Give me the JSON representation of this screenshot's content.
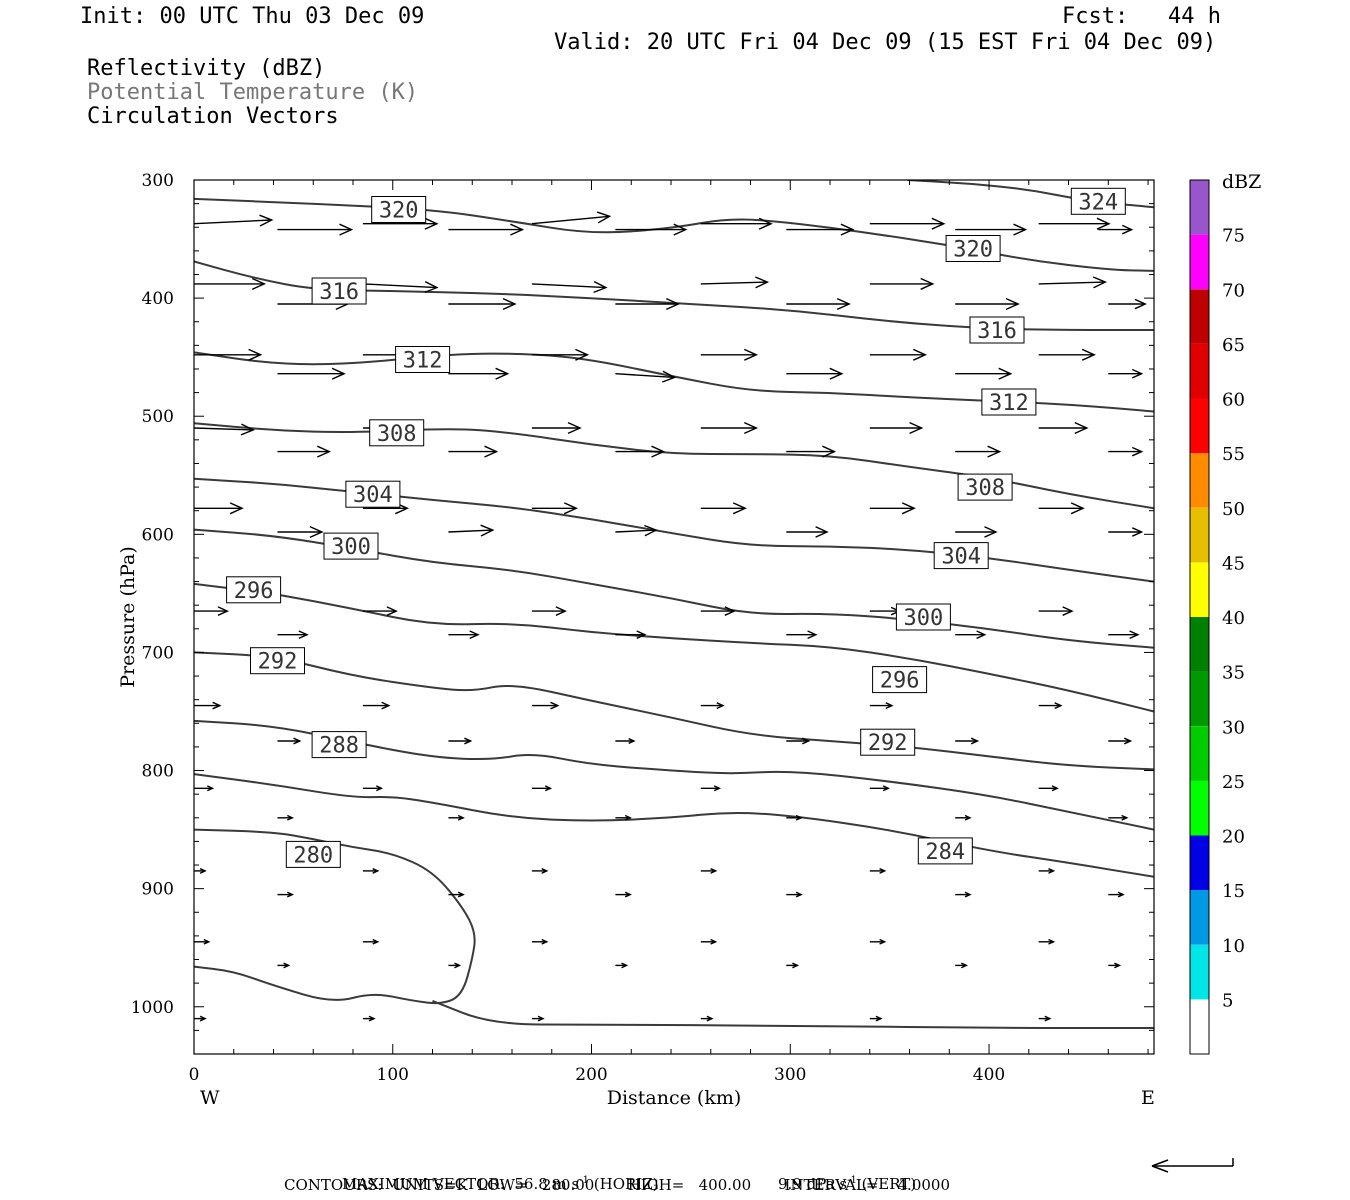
{
  "header": {
    "init": "Init: 00 UTC Thu 03 Dec 09",
    "fcst": "Fcst:   44 h",
    "valid": "Valid: 20 UTC Fri 04 Dec 09 (15 EST Fri 04 Dec 09)",
    "field1": "Reflectivity (dBZ)",
    "field2": "Potential Temperature (K)",
    "field3": "Circulation Vectors"
  },
  "footer": {
    "maxvec_label": "MAXIMUM VECTOR:",
    "maxvec_horiz": "56.8 m s",
    "horiz_tag": "(HORIZ)",
    "maxvec_vert": "9.9 dPa s",
    "vert_tag": "(VERT)",
    "exponent": "-1",
    "contours": "CONTOURS:  UNITS=K  LOW=   280.00       HIGH=   400.00       INTERVAL=    4.0000"
  },
  "colors": {
    "contour": "#3a3a3a",
    "vector": "#000000",
    "frame": "#000000"
  },
  "chart_data": {
    "type": "line",
    "xlabel": "Distance (km)",
    "ylabel": "Pressure (hPa)",
    "xlim": [
      0,
      483
    ],
    "ylim": [
      1040,
      300
    ],
    "x_ticks": [
      0,
      100,
      200,
      300,
      400
    ],
    "y_ticks": [
      300,
      400,
      500,
      600,
      700,
      800,
      900,
      1000
    ],
    "x_end_labels": {
      "left": "W",
      "right": "E"
    },
    "colorbar": {
      "unit": "dBZ",
      "levels": [
        "5",
        "10",
        "15",
        "20",
        "25",
        "30",
        "35",
        "40",
        "45",
        "50",
        "55",
        "60",
        "65",
        "70",
        "75"
      ],
      "colors": [
        "#ffffff",
        "#00e5e5",
        "#0099e5",
        "#0000e5",
        "#00ff00",
        "#00cc00",
        "#009900",
        "#008000",
        "#ffff00",
        "#e5bf00",
        "#ff8c00",
        "#ff0000",
        "#e00000",
        "#bf0000",
        "#ff00ff",
        "#9955cc"
      ]
    },
    "series": [
      {
        "name": "324",
        "x": [
          359,
          390,
          420,
          450,
          483
        ],
        "y": [
          300,
          303,
          308,
          318,
          323
        ]
      },
      {
        "name": "320",
        "x": [
          0,
          60,
          120,
          160,
          200,
          240,
          270,
          300,
          340,
          380,
          420,
          460,
          483
        ],
        "y": [
          316,
          320,
          325,
          335,
          346,
          341,
          332,
          336,
          345,
          355,
          368,
          376,
          377
        ]
      },
      {
        "name": "316",
        "x": [
          0,
          30,
          60,
          100,
          150,
          200,
          250,
          300,
          350,
          400,
          440,
          483
        ],
        "y": [
          369,
          383,
          393,
          394,
          396,
          400,
          405,
          410,
          420,
          426,
          427,
          427
        ]
      },
      {
        "name": "312",
        "x": [
          0,
          40,
          80,
          130,
          170,
          200,
          240,
          280,
          320,
          360,
          400,
          440,
          483
        ],
        "y": [
          446,
          456,
          456,
          447,
          447,
          452,
          466,
          479,
          480,
          484,
          487,
          490,
          496
        ]
      },
      {
        "name": "308",
        "x": [
          0,
          40,
          80,
          130,
          160,
          200,
          240,
          280,
          320,
          360,
          400,
          440,
          483
        ],
        "y": [
          506,
          512,
          514,
          510,
          514,
          524,
          532,
          532,
          533,
          543,
          552,
          566,
          578
        ]
      },
      {
        "name": "304",
        "x": [
          0,
          40,
          80,
          120,
          160,
          200,
          240,
          280,
          320,
          360,
          400,
          440,
          483
        ],
        "y": [
          553,
          557,
          564,
          571,
          577,
          587,
          599,
          610,
          610,
          613,
          620,
          630,
          640
        ]
      },
      {
        "name": "300",
        "x": [
          0,
          40,
          80,
          120,
          160,
          200,
          240,
          280,
          320,
          360,
          400,
          440,
          483
        ],
        "y": [
          596,
          601,
          612,
          624,
          630,
          642,
          654,
          668,
          667,
          672,
          680,
          690,
          696
        ]
      },
      {
        "name": "296",
        "x": [
          0,
          40,
          80,
          120,
          160,
          200,
          240,
          280,
          320,
          360,
          400,
          440,
          483
        ],
        "y": [
          642,
          650,
          663,
          677,
          675,
          683,
          688,
          692,
          695,
          705,
          718,
          732,
          750
        ]
      },
      {
        "name": "292",
        "x": [
          0,
          40,
          80,
          120,
          140,
          160,
          200,
          240,
          280,
          320,
          360,
          400,
          440,
          483
        ],
        "y": [
          700,
          703,
          720,
          730,
          733,
          726,
          741,
          755,
          770,
          775,
          780,
          788,
          796,
          799
        ]
      },
      {
        "name": "288",
        "x": [
          0,
          40,
          80,
          120,
          150,
          170,
          200,
          240,
          270,
          300,
          350,
          400,
          440,
          483
        ],
        "y": [
          758,
          762,
          776,
          789,
          791,
          785,
          795,
          800,
          803,
          800,
          809,
          821,
          835,
          850
        ]
      },
      {
        "name": "284",
        "x": [
          0,
          40,
          80,
          100,
          120,
          160,
          200,
          240,
          270,
          300,
          350,
          400,
          440,
          483
        ],
        "y": [
          803,
          812,
          823,
          822,
          827,
          840,
          843,
          840,
          835,
          838,
          850,
          868,
          878,
          890
        ]
      },
      {
        "name": "280",
        "x": [
          0,
          40,
          60,
          80,
          100,
          120,
          135,
          142,
          140,
          135,
          125,
          110,
          90,
          70,
          40,
          20,
          0
        ],
        "y": [
          850,
          852,
          858,
          865,
          870,
          885,
          915,
          938,
          960,
          990,
          998,
          995,
          988,
          997,
          982,
          970,
          966
        ]
      },
      {
        "name": "",
        "x": [
          120,
          150,
          200,
          300,
          400,
          483
        ],
        "y": [
          995,
          1015,
          1015,
          1016,
          1018,
          1018
        ]
      }
    ],
    "contour_labels": [
      {
        "text": "324",
        "x": 455,
        "y": 318
      },
      {
        "text": "320",
        "x": 103,
        "y": 325
      },
      {
        "text": "320",
        "x": 392,
        "y": 358
      },
      {
        "text": "316",
        "x": 73,
        "y": 394
      },
      {
        "text": "316",
        "x": 404,
        "y": 427
      },
      {
        "text": "312",
        "x": 115,
        "y": 452
      },
      {
        "text": "312",
        "x": 410,
        "y": 488
      },
      {
        "text": "308",
        "x": 102,
        "y": 514
      },
      {
        "text": "308",
        "x": 398,
        "y": 560
      },
      {
        "text": "304",
        "x": 90,
        "y": 566
      },
      {
        "text": "304",
        "x": 386,
        "y": 618
      },
      {
        "text": "300",
        "x": 79,
        "y": 610
      },
      {
        "text": "300",
        "x": 367,
        "y": 670
      },
      {
        "text": "296",
        "x": 30,
        "y": 647
      },
      {
        "text": "296",
        "x": 355,
        "y": 723
      },
      {
        "text": "292",
        "x": 42,
        "y": 707
      },
      {
        "text": "292",
        "x": 349,
        "y": 776
      },
      {
        "text": "288",
        "x": 73,
        "y": 778
      },
      {
        "text": "284",
        "x": 378,
        "y": 868
      },
      {
        "text": "280",
        "x": 60,
        "y": 871
      }
    ],
    "vectors": [
      {
        "p": 337,
        "x": [
          0,
          85,
          170,
          255,
          340,
          425
        ],
        "u": [
          42,
          40,
          42,
          38,
          40,
          38
        ],
        "v": [
          2,
          0,
          4,
          0,
          0,
          0
        ]
      },
      {
        "p": 342,
        "x": [
          42,
          128,
          212,
          298,
          383,
          455
        ],
        "u": [
          40,
          40,
          38,
          36,
          38,
          18
        ],
        "v": [
          0,
          0,
          0,
          0,
          0,
          0
        ]
      },
      {
        "p": 388,
        "x": [
          0,
          85,
          170,
          255,
          340,
          425
        ],
        "u": [
          38,
          40,
          40,
          36,
          34,
          36
        ],
        "v": [
          0,
          -2,
          -2,
          1,
          0,
          1
        ]
      },
      {
        "p": 405,
        "x": [
          42,
          128,
          212,
          298,
          383,
          460
        ],
        "u": [
          38,
          36,
          34,
          34,
          34,
          20
        ],
        "v": [
          0,
          0,
          0,
          0,
          0,
          0
        ]
      },
      {
        "p": 448,
        "x": [
          0,
          85,
          170,
          255,
          340,
          425
        ],
        "u": [
          36,
          36,
          30,
          30,
          30,
          30
        ],
        "v": [
          0,
          0,
          0,
          0,
          0,
          0
        ]
      },
      {
        "p": 464,
        "x": [
          42,
          128,
          212,
          298,
          383,
          460
        ],
        "u": [
          36,
          32,
          32,
          30,
          30,
          18
        ],
        "v": [
          0,
          0,
          -2,
          0,
          0,
          0
        ]
      },
      {
        "p": 510,
        "x": [
          0,
          85,
          170,
          255,
          340,
          425
        ],
        "u": [
          32,
          32,
          26,
          30,
          28,
          26
        ],
        "v": [
          -1,
          0,
          0,
          0,
          0,
          0
        ]
      },
      {
        "p": 530,
        "x": [
          42,
          128,
          212,
          298,
          383,
          460
        ],
        "u": [
          28,
          26,
          26,
          26,
          24,
          18
        ],
        "v": [
          0,
          0,
          0,
          0,
          0,
          0
        ]
      },
      {
        "p": 578,
        "x": [
          0,
          85,
          170,
          255,
          340,
          425
        ],
        "u": [
          26,
          24,
          24,
          24,
          24,
          24
        ],
        "v": [
          0,
          0,
          0,
          0,
          0,
          0
        ]
      },
      {
        "p": 598,
        "x": [
          42,
          128,
          212,
          298,
          383,
          460
        ],
        "u": [
          24,
          24,
          22,
          22,
          22,
          18
        ],
        "v": [
          0,
          1,
          1,
          0,
          0,
          0
        ]
      },
      {
        "p": 665,
        "x": [
          0,
          85,
          170,
          255,
          340,
          425
        ],
        "u": [
          18,
          18,
          18,
          18,
          16,
          18
        ],
        "v": [
          0,
          0,
          0,
          0,
          0,
          0
        ]
      },
      {
        "p": 685,
        "x": [
          42,
          128,
          212,
          298,
          383,
          460
        ],
        "u": [
          16,
          16,
          16,
          16,
          16,
          16
        ],
        "v": [
          0,
          0,
          0,
          0,
          0,
          0
        ]
      },
      {
        "p": 745,
        "x": [
          0,
          85,
          170,
          255,
          340,
          425
        ],
        "u": [
          14,
          14,
          14,
          12,
          12,
          12
        ],
        "v": [
          0,
          0,
          0,
          0,
          0,
          0
        ]
      },
      {
        "p": 775,
        "x": [
          42,
          128,
          212,
          298,
          383,
          460
        ],
        "u": [
          12,
          12,
          10,
          12,
          12,
          12
        ],
        "v": [
          0,
          0,
          0,
          0,
          0,
          0
        ]
      },
      {
        "p": 815,
        "x": [
          0,
          85,
          170,
          255,
          340,
          425
        ],
        "u": [
          10,
          10,
          10,
          10,
          10,
          10
        ],
        "v": [
          0,
          0,
          0,
          0,
          0,
          0
        ]
      },
      {
        "p": 840,
        "x": [
          42,
          128,
          212,
          298,
          383,
          460
        ],
        "u": [
          8,
          8,
          8,
          8,
          8,
          10
        ],
        "v": [
          0,
          0,
          0,
          0,
          0,
          0
        ]
      },
      {
        "p": 885,
        "x": [
          0,
          85,
          170,
          255,
          340,
          425
        ],
        "u": [
          6,
          8,
          8,
          8,
          8,
          8
        ],
        "v": [
          0,
          0,
          0,
          0,
          0,
          0
        ]
      },
      {
        "p": 905,
        "x": [
          42,
          128,
          212,
          298,
          383,
          460
        ],
        "u": [
          8,
          8,
          8,
          8,
          8,
          8
        ],
        "v": [
          0,
          0,
          0,
          0,
          0,
          0
        ]
      },
      {
        "p": 945,
        "x": [
          0,
          85,
          170,
          255,
          340,
          425
        ],
        "u": [
          8,
          8,
          8,
          8,
          8,
          8
        ],
        "v": [
          0,
          0,
          0,
          0,
          0,
          0
        ]
      },
      {
        "p": 965,
        "x": [
          42,
          128,
          212,
          298,
          383,
          460
        ],
        "u": [
          6,
          6,
          6,
          6,
          6,
          6
        ],
        "v": [
          0,
          0,
          0,
          0,
          0,
          0
        ]
      },
      {
        "p": 1010,
        "x": [
          0,
          85,
          170,
          255,
          340,
          425
        ],
        "u": [
          6,
          6,
          6,
          6,
          6,
          6
        ],
        "v": [
          0,
          0,
          0,
          0,
          0,
          0
        ]
      }
    ]
  }
}
